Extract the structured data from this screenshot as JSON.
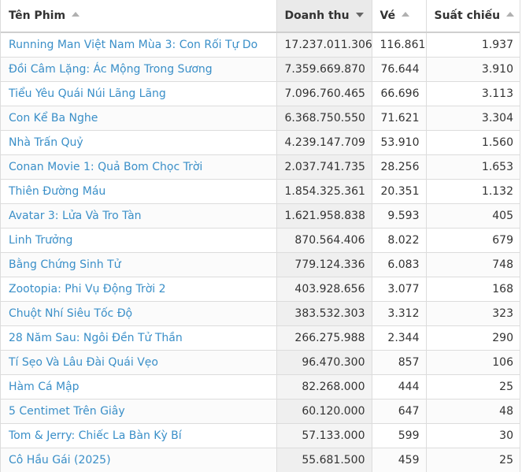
{
  "headers": {
    "title": "Tên Phim",
    "revenue": "Doanh thu",
    "tickets": "Vé",
    "showings": "Suất chiếu"
  },
  "rows": [
    {
      "title": "Running Man Việt Nam Mùa 3: Con Rối Tự Do",
      "revenue": "17.237.011.306",
      "tickets": "116.861",
      "showings": "1.937"
    },
    {
      "title": "Đồi Câm Lặng: Ác Mộng Trong Sương",
      "revenue": "7.359.669.870",
      "tickets": "76.644",
      "showings": "3.910"
    },
    {
      "title": "Tiểu Yêu Quái Núi Lãng Lãng",
      "revenue": "7.096.760.465",
      "tickets": "66.696",
      "showings": "3.113"
    },
    {
      "title": "Con Kể Ba Nghe",
      "revenue": "6.368.750.550",
      "tickets": "71.621",
      "showings": "3.304"
    },
    {
      "title": "Nhà Trấn Quỷ",
      "revenue": "4.239.147.709",
      "tickets": "53.910",
      "showings": "1.560"
    },
    {
      "title": "Conan Movie 1: Quả Bom Chọc Trời",
      "revenue": "2.037.741.735",
      "tickets": "28.256",
      "showings": "1.653"
    },
    {
      "title": "Thiên Đường Máu",
      "revenue": "1.854.325.361",
      "tickets": "20.351",
      "showings": "1.132"
    },
    {
      "title": "Avatar 3: Lửa Và Tro Tàn",
      "revenue": "1.621.958.838",
      "tickets": "9.593",
      "showings": "405"
    },
    {
      "title": "Linh Trưởng",
      "revenue": "870.564.406",
      "tickets": "8.022",
      "showings": "679"
    },
    {
      "title": "Bằng Chứng Sinh Tử",
      "revenue": "779.124.336",
      "tickets": "6.083",
      "showings": "748"
    },
    {
      "title": "Zootopia: Phi Vụ Động Trời 2",
      "revenue": "403.928.656",
      "tickets": "3.077",
      "showings": "168"
    },
    {
      "title": "Chuột Nhí Siêu Tốc Độ",
      "revenue": "383.532.303",
      "tickets": "3.312",
      "showings": "323"
    },
    {
      "title": "28 Năm Sau: Ngôi Đền Tử Thần",
      "revenue": "266.275.988",
      "tickets": "2.344",
      "showings": "290"
    },
    {
      "title": "Tí Sẹo Và Lâu Đài Quái Vẹo",
      "revenue": "96.470.300",
      "tickets": "857",
      "showings": "106"
    },
    {
      "title": "Hàm Cá Mập",
      "revenue": "82.268.000",
      "tickets": "444",
      "showings": "25"
    },
    {
      "title": "5 Centimet Trên Giây",
      "revenue": "60.120.000",
      "tickets": "647",
      "showings": "48"
    },
    {
      "title": "Tom & Jerry: Chiếc La Bàn Kỳ Bí",
      "revenue": "57.133.000",
      "tickets": "599",
      "showings": "30"
    },
    {
      "title": "Cô Hầu Gái (2025)",
      "revenue": "55.681.500",
      "tickets": "459",
      "showings": "25"
    }
  ],
  "sort": {
    "column": "revenue",
    "direction": "descending"
  },
  "colors": {
    "link": "#3a8fc8",
    "text": "#333333",
    "sorted_header_bg": "#eaeaea",
    "sorted_cell_bg": "#f4f4f4",
    "border": "#dcdcdc"
  }
}
